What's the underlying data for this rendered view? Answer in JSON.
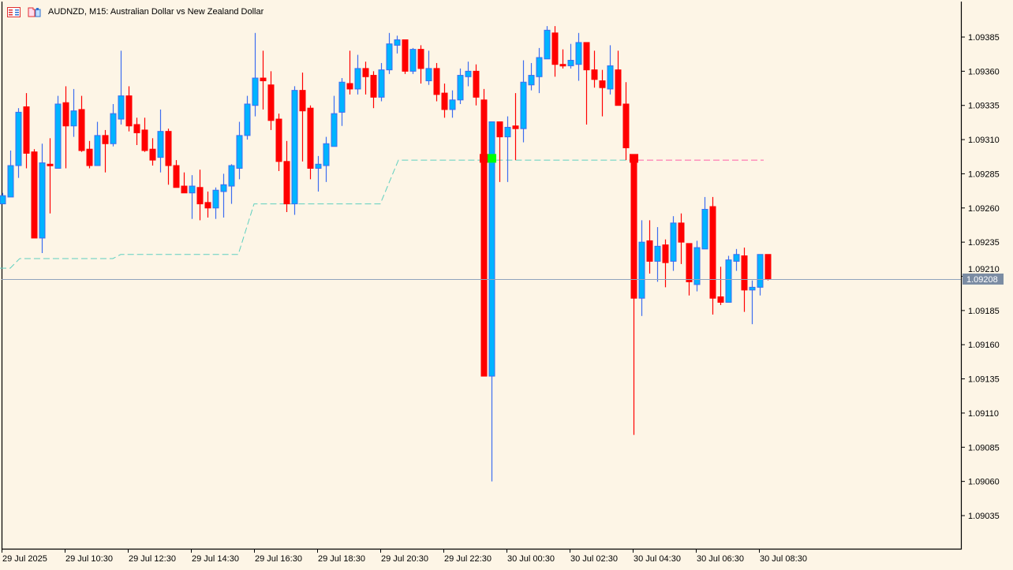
{
  "header": {
    "title": "AUDNZD, M15:  Australian Dollar vs New Zealand Dollar",
    "icons": [
      "one-click-trading-icon",
      "chart-template-icon"
    ]
  },
  "colors": {
    "background": "#fdf5e6",
    "bull_body": "#00b4ff",
    "bull_border": "#3d6df0",
    "bear": "#ff0000",
    "stop_line": "#5fd0c0",
    "stop_line_active": "#ff5fa8",
    "bid_line": "#8fa3bd",
    "bid_label_bg": "#7b8ca3",
    "marker_green": "#00ff00"
  },
  "chart_data": {
    "type": "candlestick",
    "symbol": "AUDNZD",
    "timeframe": "M15",
    "title": "AUDNZD, M15:  Australian Dollar vs New Zealand Dollar",
    "ylim": [
      1.09012,
      1.09412
    ],
    "y_ticks": [
      1.09385,
      1.0936,
      1.09335,
      1.0931,
      1.09285,
      1.0926,
      1.09235,
      1.0921,
      1.09185,
      1.0916,
      1.09135,
      1.0911,
      1.09085,
      1.0906,
      1.09035
    ],
    "y_tick_labels": [
      "1.09385",
      "1.09360",
      "1.09335",
      "1.09310",
      "1.09285",
      "1.09260",
      "1.09235",
      "1.09210",
      "1.09185",
      "1.09160",
      "1.09135",
      "1.09110",
      "1.09085",
      "1.09060",
      "1.09035"
    ],
    "x_tick_labels": [
      {
        "index": 0,
        "label": "29 Jul 2025"
      },
      {
        "index": 8,
        "label": "29 Jul 10:30"
      },
      {
        "index": 16,
        "label": "29 Jul 12:30"
      },
      {
        "index": 24,
        "label": "29 Jul 14:30"
      },
      {
        "index": 32,
        "label": "29 Jul 16:30"
      },
      {
        "index": 40,
        "label": "29 Jul 18:30"
      },
      {
        "index": 48,
        "label": "29 Jul 20:30"
      },
      {
        "index": 56,
        "label": "29 Jul 22:30"
      },
      {
        "index": 64,
        "label": "30 Jul 00:30"
      },
      {
        "index": 72,
        "label": "30 Jul 02:30"
      },
      {
        "index": 80,
        "label": "30 Jul 04:30"
      },
      {
        "index": 88,
        "label": "30 Jul 06:30"
      },
      {
        "index": 96,
        "label": "30 Jul 08:30"
      }
    ],
    "current_price": "1.09208",
    "candles_ohlc": [
      [
        1.09263,
        1.09271,
        1.09263,
        1.09269
      ],
      [
        1.09268,
        1.09302,
        1.09268,
        1.09291
      ],
      [
        1.09291,
        1.09333,
        1.09282,
        1.0933
      ],
      [
        1.09334,
        1.09344,
        1.09289,
        1.093
      ],
      [
        1.09301,
        1.09303,
        1.09238,
        1.09238
      ],
      [
        1.09238,
        1.09307,
        1.09227,
        1.09293
      ],
      [
        1.09292,
        1.09311,
        1.09256,
        1.09291
      ],
      [
        1.09289,
        1.09342,
        1.09289,
        1.09336
      ],
      [
        1.09337,
        1.09349,
        1.09289,
        1.0932
      ],
      [
        1.0932,
        1.09347,
        1.09312,
        1.09331
      ],
      [
        1.09332,
        1.09342,
        1.09301,
        1.09302
      ],
      [
        1.09303,
        1.09309,
        1.09289,
        1.09291
      ],
      [
        1.09291,
        1.09323,
        1.09291,
        1.09313
      ],
      [
        1.09313,
        1.09317,
        1.09286,
        1.09307
      ],
      [
        1.09307,
        1.09336,
        1.09305,
        1.09329
      ],
      [
        1.09325,
        1.09375,
        1.09321,
        1.09342
      ],
      [
        1.09342,
        1.09349,
        1.09316,
        1.0932
      ],
      [
        1.09321,
        1.09326,
        1.09306,
        1.09315
      ],
      [
        1.09317,
        1.09326,
        1.09301,
        1.09302
      ],
      [
        1.09303,
        1.09311,
        1.09291,
        1.09295
      ],
      [
        1.09297,
        1.09332,
        1.09286,
        1.09316
      ],
      [
        1.09316,
        1.09318,
        1.09277,
        1.09291
      ],
      [
        1.09291,
        1.09295,
        1.09275,
        1.09275
      ],
      [
        1.09276,
        1.09286,
        1.09271,
        1.09271
      ],
      [
        1.09271,
        1.09284,
        1.09252,
        1.09276
      ],
      [
        1.09275,
        1.09288,
        1.09251,
        1.09263
      ],
      [
        1.09264,
        1.09272,
        1.09253,
        1.0926
      ],
      [
        1.0926,
        1.09275,
        1.09252,
        1.09273
      ],
      [
        1.09272,
        1.09285,
        1.09253,
        1.09277
      ],
      [
        1.09276,
        1.09292,
        1.09263,
        1.09291
      ],
      [
        1.09289,
        1.09323,
        1.09281,
        1.09313
      ],
      [
        1.09313,
        1.09342,
        1.0931,
        1.09336
      ],
      [
        1.09335,
        1.09388,
        1.09327,
        1.09355
      ],
      [
        1.09355,
        1.09375,
        1.09332,
        1.09353
      ],
      [
        1.0935,
        1.0936,
        1.09317,
        1.09324
      ],
      [
        1.09325,
        1.09329,
        1.09287,
        1.09294
      ],
      [
        1.09294,
        1.09309,
        1.09257,
        1.09263
      ],
      [
        1.09263,
        1.09349,
        1.09255,
        1.09346
      ],
      [
        1.09346,
        1.09359,
        1.09294,
        1.09331
      ],
      [
        1.09333,
        1.09335,
        1.09281,
        1.09289
      ],
      [
        1.09289,
        1.09298,
        1.09272,
        1.09292
      ],
      [
        1.09291,
        1.09312,
        1.09279,
        1.09307
      ],
      [
        1.09305,
        1.09342,
        1.09305,
        1.09329
      ],
      [
        1.0933,
        1.09355,
        1.0932,
        1.09352
      ],
      [
        1.09351,
        1.09375,
        1.09343,
        1.09347
      ],
      [
        1.09347,
        1.09372,
        1.09343,
        1.09362
      ],
      [
        1.09362,
        1.09367,
        1.09343,
        1.09356
      ],
      [
        1.09357,
        1.0936,
        1.09333,
        1.09341
      ],
      [
        1.09341,
        1.09366,
        1.09338,
        1.09361
      ],
      [
        1.09361,
        1.09388,
        1.09358,
        1.0938
      ],
      [
        1.09379,
        1.09386,
        1.09373,
        1.09383
      ],
      [
        1.09383,
        1.09383,
        1.09358,
        1.0936
      ],
      [
        1.0936,
        1.09377,
        1.09358,
        1.09376
      ],
      [
        1.09376,
        1.09379,
        1.09351,
        1.09362
      ],
      [
        1.09353,
        1.09375,
        1.0935,
        1.09362
      ],
      [
        1.09362,
        1.09366,
        1.09338,
        1.09343
      ],
      [
        1.09344,
        1.09351,
        1.09326,
        1.09332
      ],
      [
        1.09332,
        1.09346,
        1.09326,
        1.09339
      ],
      [
        1.09339,
        1.09362,
        1.09336,
        1.09357
      ],
      [
        1.09356,
        1.09367,
        1.09349,
        1.0936
      ],
      [
        1.0936,
        1.09365,
        1.09335,
        1.09341
      ],
      [
        1.09339,
        1.09347,
        1.09137,
        1.09137
      ],
      [
        1.09137,
        1.09323,
        1.0906,
        1.09323
      ],
      [
        1.09323,
        1.09323,
        1.09279,
        1.09312
      ],
      [
        1.09312,
        1.09327,
        1.09279,
        1.09319
      ],
      [
        1.0932,
        1.09344,
        1.09295,
        1.09318
      ],
      [
        1.09318,
        1.09368,
        1.09308,
        1.09352
      ],
      [
        1.0935,
        1.09366,
        1.09346,
        1.09357
      ],
      [
        1.09356,
        1.09377,
        1.09344,
        1.0937
      ],
      [
        1.09369,
        1.09393,
        1.09369,
        1.0939
      ],
      [
        1.09388,
        1.09393,
        1.09356,
        1.09365
      ],
      [
        1.09365,
        1.09376,
        1.09362,
        1.09364
      ],
      [
        1.09364,
        1.0938,
        1.09362,
        1.09368
      ],
      [
        1.09365,
        1.09388,
        1.09353,
        1.09381
      ],
      [
        1.09381,
        1.09381,
        1.09321,
        1.09361
      ],
      [
        1.09361,
        1.09375,
        1.09348,
        1.09354
      ],
      [
        1.09353,
        1.09361,
        1.09327,
        1.09348
      ],
      [
        1.09347,
        1.09379,
        1.09343,
        1.09364
      ],
      [
        1.09361,
        1.09375,
        1.09335,
        1.09335
      ],
      [
        1.09336,
        1.09352,
        1.09295,
        1.09304
      ],
      [
        1.09298,
        1.09299,
        1.09094,
        1.09194
      ],
      [
        1.09194,
        1.09251,
        1.09181,
        1.09235
      ],
      [
        1.09236,
        1.09251,
        1.09212,
        1.09221
      ],
      [
        1.09221,
        1.09246,
        1.09206,
        1.09232
      ],
      [
        1.09233,
        1.09237,
        1.09202,
        1.0922
      ],
      [
        1.09221,
        1.09254,
        1.09214,
        1.09249
      ],
      [
        1.09249,
        1.09256,
        1.09219,
        1.09235
      ],
      [
        1.09234,
        1.09234,
        1.09196,
        1.09206
      ],
      [
        1.09204,
        1.09236,
        1.09199,
        1.09231
      ],
      [
        1.0923,
        1.09268,
        1.0923,
        1.09259
      ],
      [
        1.09261,
        1.09268,
        1.09182,
        1.09194
      ],
      [
        1.09195,
        1.09217,
        1.09189,
        1.09191
      ],
      [
        1.09191,
        1.09225,
        1.09191,
        1.09222
      ],
      [
        1.09221,
        1.0923,
        1.09214,
        1.09226
      ],
      [
        1.09225,
        1.09231,
        1.09184,
        1.092
      ],
      [
        1.092,
        1.09207,
        1.09175,
        1.09202
      ],
      [
        1.09202,
        1.09226,
        1.09196,
        1.09226
      ],
      [
        1.09226,
        1.09226,
        1.09207,
        1.09208
      ]
    ],
    "stop_line_segments": [
      {
        "from": -0.3,
        "to": 1,
        "value": 1.09216
      },
      {
        "from": 2.2,
        "to": 14,
        "value": 1.09223
      },
      {
        "from": 15,
        "to": 29.9,
        "value": 1.09226
      },
      {
        "from": 31.9,
        "to": 47.9,
        "value": 1.09263
      },
      {
        "from": 50.2,
        "to": 79.7,
        "value": 1.09295
      }
    ],
    "stop_line_active": {
      "from": 80.5,
      "to": 96.5,
      "value": 1.09295
    },
    "markers": [
      {
        "index": 61,
        "price": 1.09296,
        "color": "red"
      },
      {
        "index": 62,
        "price": 1.09296,
        "color": "green"
      },
      {
        "index": 80,
        "price": 1.09296,
        "color": "red"
      }
    ]
  }
}
